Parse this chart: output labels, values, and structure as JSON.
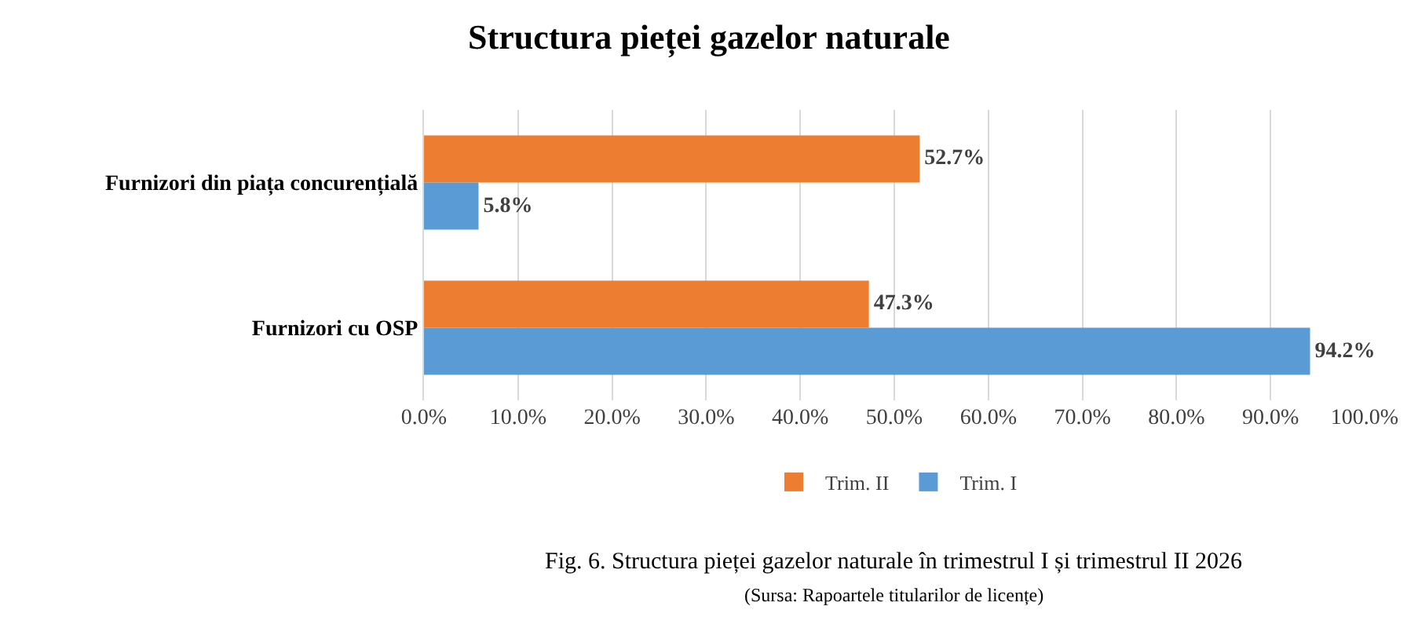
{
  "chart_data": {
    "type": "bar",
    "orientation": "horizontal",
    "title": "Structura pieței gazelor naturale",
    "categories": [
      "Furnizori din piața concurențială",
      "Furnizori cu OSP"
    ],
    "series": [
      {
        "name": "Trim. II",
        "color": "#ed7d31",
        "values": [
          52.7,
          47.3
        ],
        "value_labels": [
          "52.7%",
          "47.3%"
        ]
      },
      {
        "name": "Trim. I",
        "color": "#5b9bd5",
        "values": [
          5.8,
          94.2
        ],
        "value_labels": [
          "5.8%",
          "94.2%"
        ]
      }
    ],
    "xlim": [
      0,
      100
    ],
    "xticks": [
      {
        "value": 0,
        "label": "0.0%"
      },
      {
        "value": 10,
        "label": "10.0%"
      },
      {
        "value": 20,
        "label": "20.0%"
      },
      {
        "value": 30,
        "label": "30.0%"
      },
      {
        "value": 40,
        "label": "40.0%"
      },
      {
        "value": 50,
        "label": "50.0%"
      },
      {
        "value": 60,
        "label": "60.0%"
      },
      {
        "value": 70,
        "label": "70.0%"
      },
      {
        "value": 80,
        "label": "80.0%"
      },
      {
        "value": 90,
        "label": "90.0%"
      },
      {
        "value": 100,
        "label": "100.0%"
      }
    ],
    "grid": "x",
    "legend": "bottom",
    "annotations": [
      "Fig. 6. Structura pieței gazelor naturale în trimestrul I și trimestrul II 2026",
      "(Sursa: Rapoartele titularilor de licențe)"
    ]
  }
}
